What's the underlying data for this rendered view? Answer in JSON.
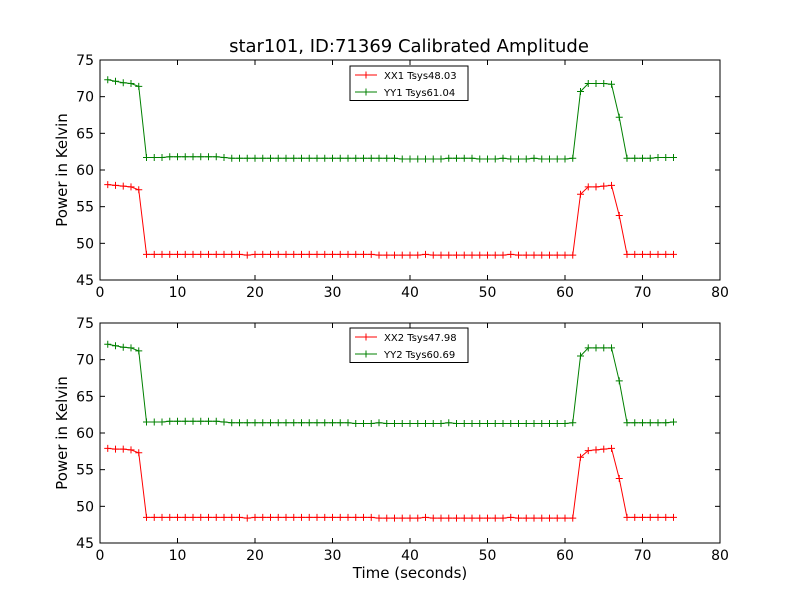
{
  "figure_title": "star101, ID:71369 Calibrated Amplitude",
  "chart_data": [
    {
      "type": "line",
      "xlabel": "",
      "ylabel": "Power in Kelvin",
      "xlim": [
        0,
        80
      ],
      "ylim": [
        45,
        75
      ],
      "xticks": [
        "0",
        "10",
        "20",
        "30",
        "40",
        "50",
        "60",
        "70",
        "80"
      ],
      "yticks": [
        "45",
        "50",
        "55",
        "60",
        "65",
        "70",
        "75"
      ],
      "grid": false,
      "legend_position": "top-center",
      "x": [
        1,
        2,
        3,
        4,
        5,
        6,
        7,
        8,
        9,
        10,
        11,
        12,
        13,
        14,
        15,
        16,
        17,
        18,
        19,
        20,
        21,
        22,
        23,
        24,
        25,
        26,
        27,
        28,
        29,
        30,
        31,
        32,
        33,
        34,
        35,
        36,
        37,
        38,
        39,
        40,
        41,
        42,
        43,
        44,
        45,
        46,
        47,
        48,
        49,
        50,
        51,
        52,
        53,
        54,
        55,
        56,
        57,
        58,
        59,
        60,
        61,
        62,
        63,
        64,
        65,
        66,
        67,
        68,
        69,
        70,
        71,
        72,
        73,
        74
      ],
      "series": [
        {
          "name": "XX1 Tsys48.03",
          "color": "#ff0000",
          "values": [
            58.0,
            57.9,
            57.8,
            57.7,
            57.3,
            48.5,
            48.5,
            48.5,
            48.5,
            48.5,
            48.5,
            48.5,
            48.5,
            48.5,
            48.5,
            48.5,
            48.5,
            48.5,
            48.4,
            48.5,
            48.5,
            48.5,
            48.5,
            48.5,
            48.5,
            48.5,
            48.5,
            48.5,
            48.5,
            48.5,
            48.5,
            48.5,
            48.5,
            48.5,
            48.5,
            48.4,
            48.4,
            48.4,
            48.4,
            48.4,
            48.4,
            48.5,
            48.4,
            48.4,
            48.4,
            48.4,
            48.4,
            48.4,
            48.4,
            48.4,
            48.4,
            48.4,
            48.5,
            48.4,
            48.4,
            48.4,
            48.4,
            48.4,
            48.4,
            48.4,
            48.4,
            56.7,
            57.7,
            57.7,
            57.8,
            57.9,
            53.8,
            48.5,
            48.5,
            48.5,
            48.5,
            48.5,
            48.5,
            48.5
          ]
        },
        {
          "name": "YY1 Tsys61.04",
          "color": "#008000",
          "values": [
            72.3,
            72.1,
            71.9,
            71.8,
            71.4,
            61.7,
            61.7,
            61.7,
            61.8,
            61.8,
            61.8,
            61.8,
            61.8,
            61.8,
            61.8,
            61.7,
            61.6,
            61.6,
            61.6,
            61.6,
            61.6,
            61.6,
            61.6,
            61.6,
            61.6,
            61.6,
            61.6,
            61.6,
            61.6,
            61.6,
            61.6,
            61.6,
            61.6,
            61.6,
            61.6,
            61.6,
            61.6,
            61.6,
            61.5,
            61.5,
            61.5,
            61.5,
            61.5,
            61.5,
            61.6,
            61.6,
            61.6,
            61.6,
            61.5,
            61.5,
            61.5,
            61.6,
            61.5,
            61.5,
            61.5,
            61.6,
            61.5,
            61.5,
            61.5,
            61.5,
            61.6,
            70.7,
            71.8,
            71.8,
            71.8,
            71.7,
            67.2,
            61.6,
            61.6,
            61.6,
            61.6,
            61.7,
            61.7,
            61.7
          ]
        }
      ]
    },
    {
      "type": "line",
      "xlabel": "Time (seconds)",
      "ylabel": "Power in Kelvin",
      "xlim": [
        0,
        80
      ],
      "ylim": [
        45,
        75
      ],
      "xticks": [
        "0",
        "10",
        "20",
        "30",
        "40",
        "50",
        "60",
        "70",
        "80"
      ],
      "yticks": [
        "45",
        "50",
        "55",
        "60",
        "65",
        "70",
        "75"
      ],
      "grid": false,
      "legend_position": "top-center",
      "x": [
        1,
        2,
        3,
        4,
        5,
        6,
        7,
        8,
        9,
        10,
        11,
        12,
        13,
        14,
        15,
        16,
        17,
        18,
        19,
        20,
        21,
        22,
        23,
        24,
        25,
        26,
        27,
        28,
        29,
        30,
        31,
        32,
        33,
        34,
        35,
        36,
        37,
        38,
        39,
        40,
        41,
        42,
        43,
        44,
        45,
        46,
        47,
        48,
        49,
        50,
        51,
        52,
        53,
        54,
        55,
        56,
        57,
        58,
        59,
        60,
        61,
        62,
        63,
        64,
        65,
        66,
        67,
        68,
        69,
        70,
        71,
        72,
        73,
        74
      ],
      "series": [
        {
          "name": "XX2 Tsys47.98",
          "color": "#ff0000",
          "values": [
            57.9,
            57.8,
            57.8,
            57.7,
            57.3,
            48.5,
            48.5,
            48.5,
            48.5,
            48.5,
            48.5,
            48.5,
            48.5,
            48.5,
            48.5,
            48.5,
            48.5,
            48.5,
            48.4,
            48.5,
            48.5,
            48.5,
            48.5,
            48.5,
            48.5,
            48.5,
            48.5,
            48.5,
            48.5,
            48.5,
            48.5,
            48.5,
            48.5,
            48.5,
            48.5,
            48.4,
            48.4,
            48.4,
            48.4,
            48.4,
            48.4,
            48.5,
            48.4,
            48.4,
            48.4,
            48.4,
            48.4,
            48.4,
            48.4,
            48.4,
            48.4,
            48.4,
            48.5,
            48.4,
            48.4,
            48.4,
            48.4,
            48.4,
            48.4,
            48.4,
            48.4,
            56.7,
            57.6,
            57.7,
            57.8,
            57.9,
            53.8,
            48.5,
            48.5,
            48.5,
            48.5,
            48.5,
            48.5,
            48.5
          ]
        },
        {
          "name": "YY2 Tsys60.69",
          "color": "#008000",
          "values": [
            72.1,
            71.9,
            71.7,
            71.6,
            71.2,
            61.5,
            61.5,
            61.5,
            61.6,
            61.6,
            61.6,
            61.6,
            61.6,
            61.6,
            61.6,
            61.5,
            61.4,
            61.4,
            61.4,
            61.4,
            61.4,
            61.4,
            61.4,
            61.4,
            61.4,
            61.4,
            61.4,
            61.4,
            61.4,
            61.4,
            61.4,
            61.4,
            61.3,
            61.3,
            61.3,
            61.4,
            61.3,
            61.3,
            61.3,
            61.3,
            61.3,
            61.3,
            61.3,
            61.3,
            61.4,
            61.3,
            61.3,
            61.3,
            61.3,
            61.3,
            61.3,
            61.3,
            61.3,
            61.3,
            61.3,
            61.3,
            61.3,
            61.3,
            61.3,
            61.3,
            61.4,
            70.5,
            71.6,
            71.6,
            71.6,
            71.6,
            67.1,
            61.4,
            61.4,
            61.4,
            61.4,
            61.4,
            61.4,
            61.5
          ]
        }
      ]
    }
  ]
}
